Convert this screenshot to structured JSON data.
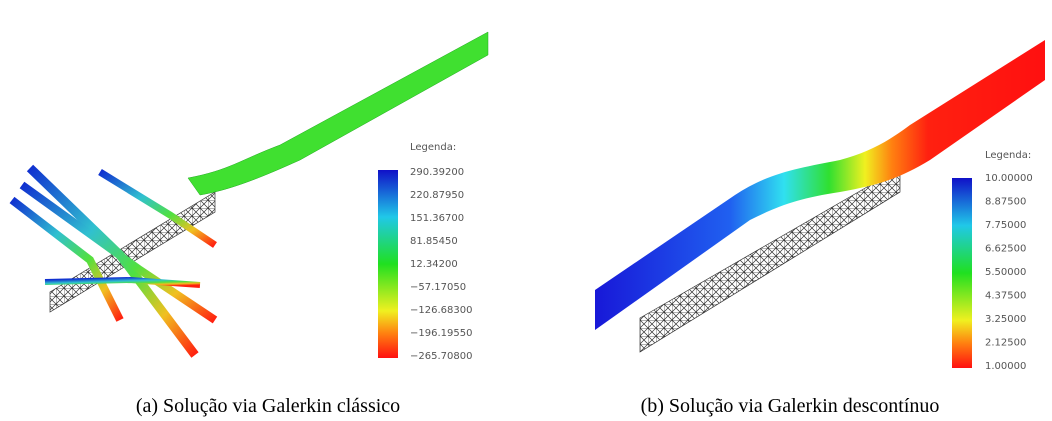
{
  "figure": {
    "panels": [
      {
        "legend": {
          "title": "Legenda:",
          "values": [
            "290.39200",
            "220.87950",
            "151.36700",
            "81.85450",
            "12.34200",
            "−57.17050",
            "−126.68300",
            "−196.19550",
            "−265.70800"
          ]
        },
        "caption": "(a)  Solução via Galerkin clássico"
      },
      {
        "legend": {
          "title": "Legenda:",
          "values": [
            "10.00000",
            "8.87500",
            "7.75000",
            "6.62500",
            "5.50000",
            "4.37500",
            "3.25000",
            "2.12500",
            "1.00000"
          ]
        },
        "caption": "(b)  Solução via Galerkin descontínuo"
      }
    ]
  }
}
